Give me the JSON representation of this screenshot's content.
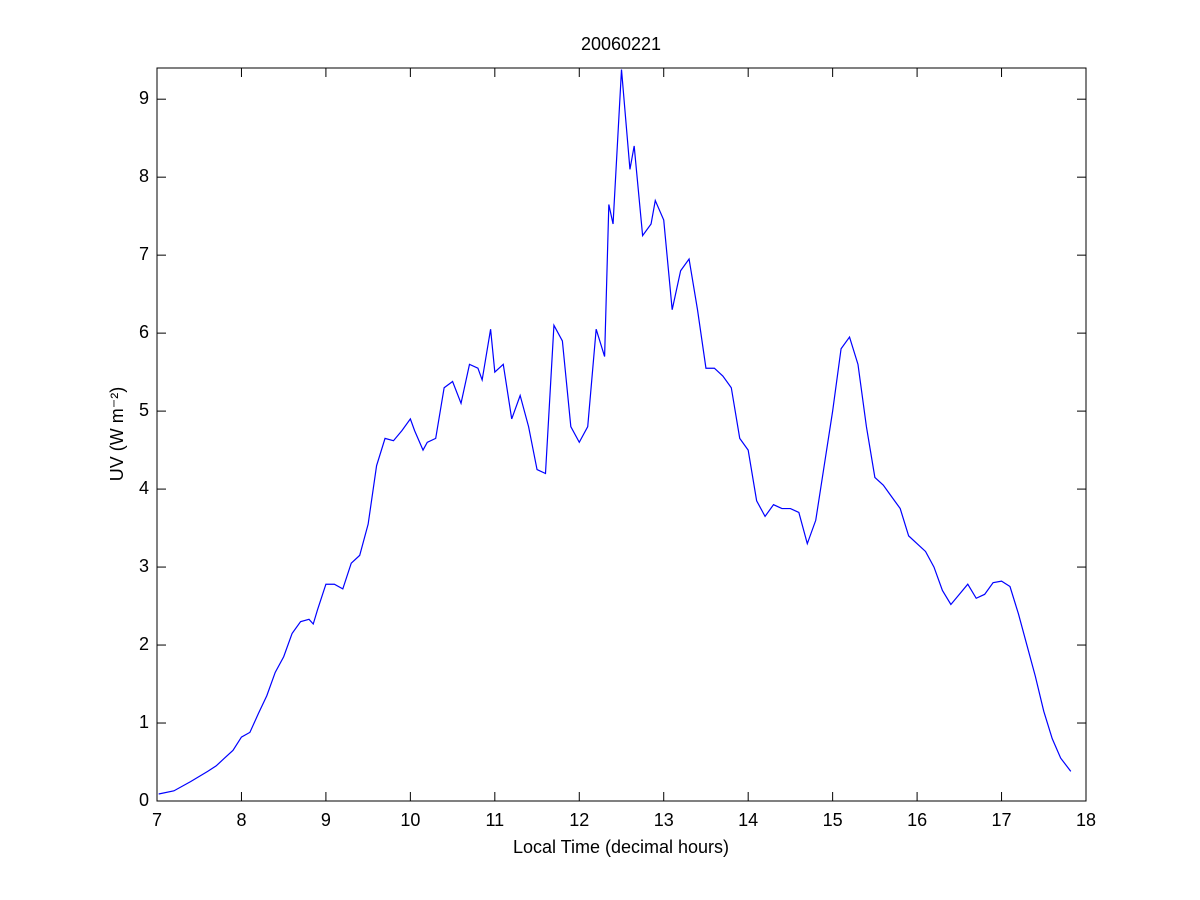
{
  "chart_data": {
    "type": "line",
    "title": "20060221",
    "xlabel": "Local Time (decimal hours)",
    "ylabel": "UV (W m⁻²)",
    "x": [
      7.02,
      7.2,
      7.4,
      7.6,
      7.7,
      7.8,
      7.9,
      8.0,
      8.1,
      8.2,
      8.3,
      8.4,
      8.5,
      8.6,
      8.7,
      8.8,
      8.85,
      8.9,
      9.0,
      9.1,
      9.2,
      9.3,
      9.4,
      9.5,
      9.6,
      9.7,
      9.8,
      9.9,
      10.0,
      10.05,
      10.15,
      10.2,
      10.3,
      10.4,
      10.5,
      10.6,
      10.7,
      10.8,
      10.85,
      10.95,
      11.0,
      11.1,
      11.2,
      11.3,
      11.4,
      11.5,
      11.6,
      11.7,
      11.8,
      11.9,
      12.0,
      12.1,
      12.2,
      12.3,
      12.35,
      12.4,
      12.5,
      12.6,
      12.65,
      12.75,
      12.85,
      12.9,
      13.0,
      13.1,
      13.2,
      13.3,
      13.4,
      13.5,
      13.6,
      13.7,
      13.8,
      13.9,
      14.0,
      14.1,
      14.2,
      14.3,
      14.4,
      14.5,
      14.6,
      14.7,
      14.8,
      14.9,
      15.0,
      15.1,
      15.2,
      15.3,
      15.4,
      15.5,
      15.6,
      15.7,
      15.8,
      15.9,
      16.0,
      16.1,
      16.2,
      16.3,
      16.4,
      16.5,
      16.6,
      16.7,
      16.8,
      16.9,
      17.0,
      17.1,
      17.2,
      17.3,
      17.4,
      17.5,
      17.6,
      17.7,
      17.82
    ],
    "series": [
      {
        "name": "UV",
        "color": "#0000ff",
        "values": [
          0.09,
          0.13,
          0.25,
          0.38,
          0.45,
          0.55,
          0.65,
          0.82,
          0.88,
          1.12,
          1.35,
          1.65,
          1.85,
          2.15,
          2.3,
          2.33,
          2.27,
          2.45,
          2.78,
          2.78,
          2.72,
          3.05,
          3.15,
          3.55,
          4.3,
          4.65,
          4.62,
          4.75,
          4.9,
          4.75,
          4.5,
          4.6,
          4.65,
          5.3,
          5.38,
          5.1,
          5.6,
          5.55,
          5.4,
          6.05,
          5.5,
          5.6,
          4.9,
          5.2,
          4.8,
          4.25,
          4.2,
          6.1,
          5.9,
          4.8,
          4.6,
          4.8,
          6.05,
          5.7,
          7.65,
          7.4,
          9.38,
          8.1,
          8.4,
          7.25,
          7.4,
          7.7,
          7.45,
          6.3,
          6.8,
          6.95,
          6.3,
          5.55,
          5.55,
          5.45,
          5.3,
          4.65,
          4.5,
          3.85,
          3.65,
          3.8,
          3.75,
          3.75,
          3.7,
          3.3,
          3.6,
          4.3,
          5.0,
          5.8,
          5.95,
          5.6,
          4.8,
          4.15,
          4.05,
          3.9,
          3.75,
          3.4,
          3.3,
          3.2,
          3.0,
          2.7,
          2.52,
          2.65,
          2.78,
          2.6,
          2.65,
          2.8,
          2.82,
          2.75,
          2.4,
          2.0,
          1.6,
          1.15,
          0.8,
          0.55,
          0.38
        ]
      }
    ],
    "xlim": [
      7,
      18
    ],
    "xticks": [
      7,
      8,
      9,
      10,
      11,
      12,
      13,
      14,
      15,
      16,
      17,
      18
    ],
    "ylim": [
      0,
      9.4
    ],
    "yticks": [
      0,
      1,
      2,
      3,
      4,
      5,
      6,
      7,
      8,
      9
    ],
    "grid": false
  }
}
